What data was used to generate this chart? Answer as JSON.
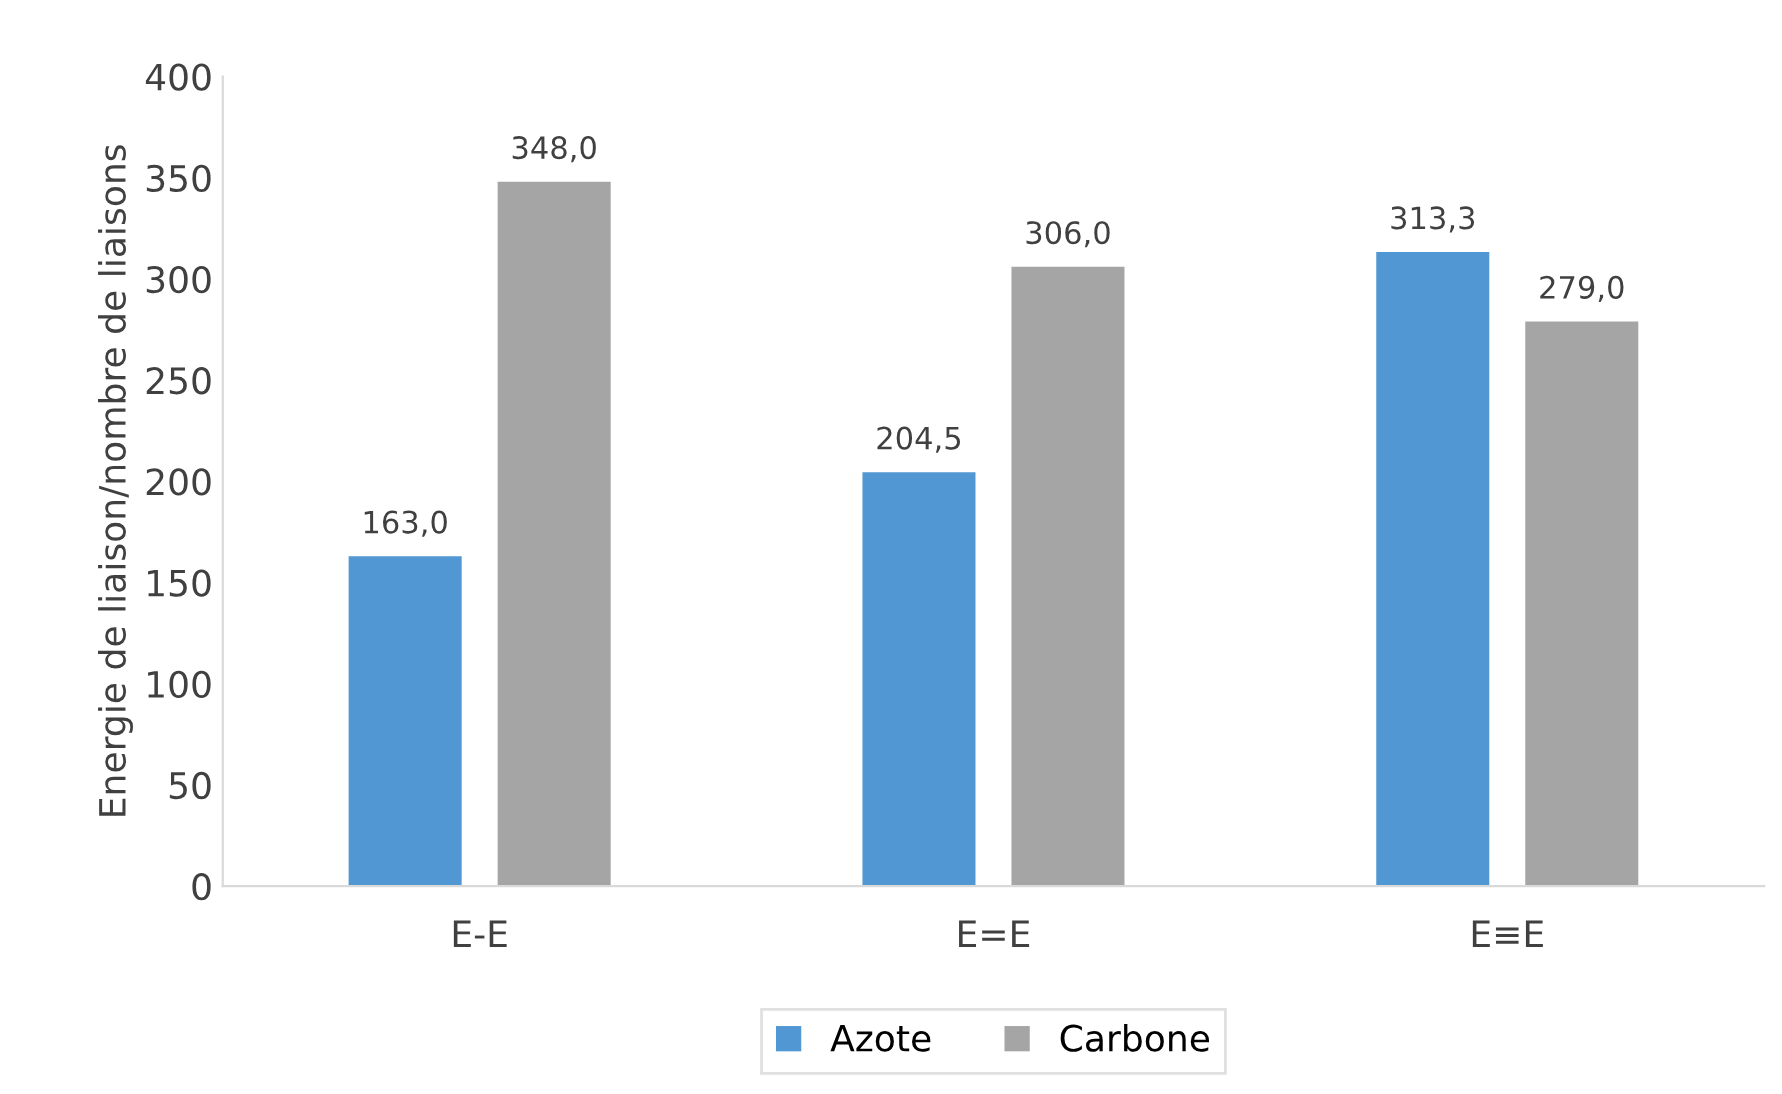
{
  "chart_data": {
    "type": "bar",
    "ylabel": "Energie de liaison/nombre de liaisons",
    "categories": [
      "E-E",
      "E=E",
      "E≡E"
    ],
    "series": [
      {
        "name": "Azote",
        "color": "#5097d3",
        "values": [
          163.0,
          204.5,
          313.3
        ],
        "value_labels": [
          "163,0",
          "204,5",
          "313,3"
        ]
      },
      {
        "name": "Carbone",
        "color": "#a5a5a5",
        "values": [
          348.0,
          306.0,
          279.0
        ],
        "value_labels": [
          "348,0",
          "306,0",
          "279,0"
        ]
      }
    ],
    "ylim": [
      0,
      400
    ],
    "yticks": [
      0,
      50,
      100,
      150,
      200,
      250,
      300,
      350,
      400
    ],
    "grid": false,
    "legend": "bottom"
  }
}
